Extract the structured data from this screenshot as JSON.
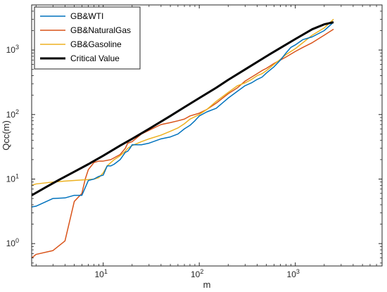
{
  "chart_data": {
    "type": "line",
    "xlabel": "m",
    "ylabel": "Qcc(m)",
    "xscale": "log",
    "yscale": "log",
    "xlim": [
      1.8,
      8000
    ],
    "ylim": [
      0.45,
      5000
    ],
    "grid": false,
    "legend_position": "top-left",
    "x_ticks": [
      {
        "value": 10,
        "base": "10",
        "exp": "1"
      },
      {
        "value": 100,
        "base": "10",
        "exp": "2"
      },
      {
        "value": 1000,
        "base": "10",
        "exp": "3"
      }
    ],
    "y_ticks": [
      {
        "value": 1,
        "base": "10",
        "exp": "0"
      },
      {
        "value": 10,
        "base": "10",
        "exp": "1"
      },
      {
        "value": 100,
        "base": "10",
        "exp": "2"
      },
      {
        "value": 1000,
        "base": "10",
        "exp": "3"
      }
    ],
    "series": [
      {
        "name": "GB&WTI",
        "color": "#0072BD",
        "width": 1.5,
        "points": [
          [
            1.8,
            3.7
          ],
          [
            2,
            3.8
          ],
          [
            3,
            5
          ],
          [
            4,
            5.1
          ],
          [
            5,
            5.6
          ],
          [
            6,
            5.6
          ],
          [
            7,
            9.5
          ],
          [
            8,
            10
          ],
          [
            9,
            11
          ],
          [
            10,
            11.5
          ],
          [
            11,
            16
          ],
          [
            12,
            16
          ],
          [
            13,
            17
          ],
          [
            15,
            20
          ],
          [
            17,
            26
          ],
          [
            18,
            27
          ],
          [
            19,
            30
          ],
          [
            20,
            34
          ],
          [
            25,
            34
          ],
          [
            30,
            36
          ],
          [
            40,
            42
          ],
          [
            50,
            45
          ],
          [
            60,
            50
          ],
          [
            70,
            60
          ],
          [
            80,
            68
          ],
          [
            90,
            80
          ],
          [
            100,
            95
          ],
          [
            120,
            110
          ],
          [
            150,
            125
          ],
          [
            200,
            180
          ],
          [
            250,
            230
          ],
          [
            300,
            280
          ],
          [
            350,
            310
          ],
          [
            400,
            350
          ],
          [
            450,
            380
          ],
          [
            500,
            440
          ],
          [
            600,
            550
          ],
          [
            700,
            700
          ],
          [
            800,
            900
          ],
          [
            900,
            1100
          ],
          [
            1000,
            1200
          ],
          [
            1200,
            1450
          ],
          [
            1500,
            1600
          ],
          [
            2000,
            2000
          ],
          [
            2500,
            2700
          ]
        ]
      },
      {
        "name": "GB&NaturalGas",
        "color": "#D95319",
        "width": 1.5,
        "points": [
          [
            1.8,
            0.6
          ],
          [
            2,
            0.68
          ],
          [
            3,
            0.78
          ],
          [
            4,
            1.1
          ],
          [
            5,
            4.5
          ],
          [
            6,
            6
          ],
          [
            6.5,
            10
          ],
          [
            7,
            14
          ],
          [
            8,
            18
          ],
          [
            9,
            19
          ],
          [
            10,
            19
          ],
          [
            12,
            20
          ],
          [
            15,
            24
          ],
          [
            17,
            30
          ],
          [
            18,
            36
          ],
          [
            20,
            38
          ],
          [
            25,
            50
          ],
          [
            30,
            57
          ],
          [
            40,
            70
          ],
          [
            50,
            75
          ],
          [
            60,
            80
          ],
          [
            70,
            85
          ],
          [
            80,
            95
          ],
          [
            100,
            105
          ],
          [
            120,
            120
          ],
          [
            150,
            150
          ],
          [
            200,
            210
          ],
          [
            250,
            260
          ],
          [
            300,
            330
          ],
          [
            350,
            380
          ],
          [
            400,
            430
          ],
          [
            450,
            480
          ],
          [
            500,
            520
          ],
          [
            600,
            620
          ],
          [
            700,
            700
          ],
          [
            800,
            780
          ],
          [
            1000,
            950
          ],
          [
            1200,
            1100
          ],
          [
            1500,
            1300
          ],
          [
            2000,
            1700
          ],
          [
            2500,
            2100
          ]
        ]
      },
      {
        "name": "GB&Gasoline",
        "color": "#EDB120",
        "width": 1.5,
        "points": [
          [
            1.8,
            8
          ],
          [
            2,
            8.4
          ],
          [
            3,
            9
          ],
          [
            4,
            9.3
          ],
          [
            5,
            9.5
          ],
          [
            6,
            9.7
          ],
          [
            7,
            9.8
          ],
          [
            8,
            10
          ],
          [
            9,
            10.5
          ],
          [
            10,
            12.5
          ],
          [
            11,
            16
          ],
          [
            12,
            18
          ],
          [
            13,
            20
          ],
          [
            15,
            23
          ],
          [
            17,
            27
          ],
          [
            18,
            30
          ],
          [
            20,
            33
          ],
          [
            25,
            38
          ],
          [
            30,
            42
          ],
          [
            40,
            48
          ],
          [
            50,
            55
          ],
          [
            60,
            62
          ],
          [
            70,
            72
          ],
          [
            80,
            85
          ],
          [
            100,
            100
          ],
          [
            120,
            120
          ],
          [
            150,
            160
          ],
          [
            200,
            220
          ],
          [
            250,
            280
          ],
          [
            300,
            310
          ],
          [
            350,
            350
          ],
          [
            400,
            400
          ],
          [
            450,
            430
          ],
          [
            500,
            480
          ],
          [
            600,
            600
          ],
          [
            700,
            720
          ],
          [
            800,
            850
          ],
          [
            1000,
            1050
          ],
          [
            1200,
            1300
          ],
          [
            1500,
            1700
          ],
          [
            2000,
            2200
          ],
          [
            2500,
            3000
          ]
        ]
      },
      {
        "name": "Critical Value",
        "color": "#000000",
        "width": 3,
        "points": [
          [
            1.8,
            5.6
          ],
          [
            2.5,
            7.4
          ],
          [
            3.5,
            9.8
          ],
          [
            5,
            13
          ],
          [
            7,
            17
          ],
          [
            10,
            23
          ],
          [
            15,
            33
          ],
          [
            20,
            42
          ],
          [
            30,
            60
          ],
          [
            50,
            95
          ],
          [
            70,
            130
          ],
          [
            100,
            180
          ],
          [
            150,
            260
          ],
          [
            200,
            345
          ],
          [
            300,
            500
          ],
          [
            500,
            800
          ],
          [
            700,
            1080
          ],
          [
            1000,
            1480
          ],
          [
            1500,
            2100
          ],
          [
            2000,
            2500
          ],
          [
            2500,
            2700
          ]
        ]
      }
    ]
  }
}
